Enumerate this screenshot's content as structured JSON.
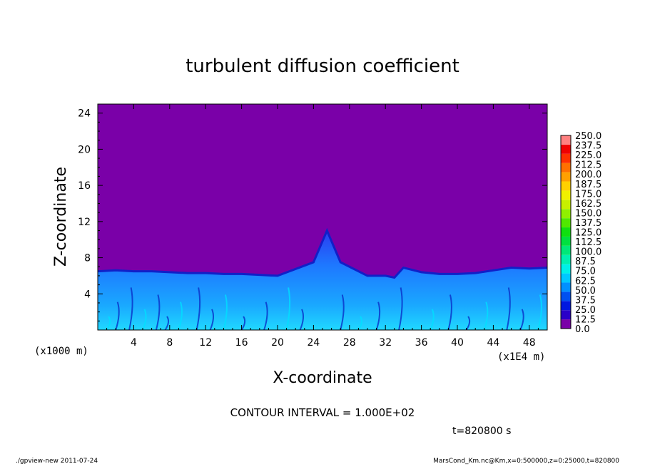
{
  "chart_data": {
    "type": "heatmap",
    "title": "turbulent diffusion coefficient",
    "xlabel": "X-coordinate",
    "ylabel": "Z-coordinate",
    "x_unit_left": "(x1000 m)",
    "x_unit_right": "(x1E4 m)",
    "xlim": [
      0,
      50
    ],
    "ylim": [
      0,
      25
    ],
    "x_ticks": [
      4,
      8,
      12,
      16,
      20,
      24,
      28,
      32,
      36,
      40,
      44,
      48
    ],
    "y_ticks": [
      4,
      8,
      12,
      16,
      20,
      24
    ],
    "colorbar_levels": [
      "0.0",
      "12.5",
      "25.0",
      "37.5",
      "50.0",
      "62.5",
      "75.0",
      "87.5",
      "100.0",
      "112.5",
      "125.0",
      "137.5",
      "150.0",
      "162.5",
      "175.0",
      "187.5",
      "200.0",
      "212.5",
      "225.0",
      "237.5",
      "250.0"
    ],
    "colorbar_colors": [
      "#7a00a8",
      "#2a00c8",
      "#0018e0",
      "#0050f0",
      "#0090ff",
      "#00c8ff",
      "#00f0e8",
      "#00f0b0",
      "#00e878",
      "#00e040",
      "#10e010",
      "#50e800",
      "#90f000",
      "#c8f000",
      "#f0f000",
      "#ffd000",
      "#ffa000",
      "#ff7000",
      "#ff3000",
      "#f00000",
      "#ff8080"
    ],
    "background_value": "0.0",
    "boundary_layer_top": [
      6.5,
      6.6,
      6.5,
      6.5,
      6.4,
      6.3,
      6.3,
      6.2,
      6.2,
      6.1,
      6.0,
      7.5,
      11.0,
      7.5,
      6.0,
      6.0,
      5.8,
      6.9,
      6.4,
      6.2,
      6.2,
      6.3,
      6.6,
      6.9,
      6.8,
      6.9
    ],
    "boundary_layer_x": [
      0,
      2,
      4,
      6,
      8,
      10,
      12,
      14,
      16,
      18,
      20,
      24,
      25.5,
      27,
      30,
      32,
      33,
      34,
      36,
      38,
      40,
      42,
      44,
      46,
      48,
      50
    ],
    "contour_interval": "CONTOUR INTERVAL = 1.000E+02",
    "time_label": "t=820800 s"
  },
  "footer": {
    "left": "./gpview-new   2011-07-24",
    "right": "MarsCond_Km.nc@Km,x=0:500000,z=0:25000,t=820800"
  },
  "colors": {
    "background_field": "#7a00a8",
    "boundary_layer": "#1e78ff"
  }
}
